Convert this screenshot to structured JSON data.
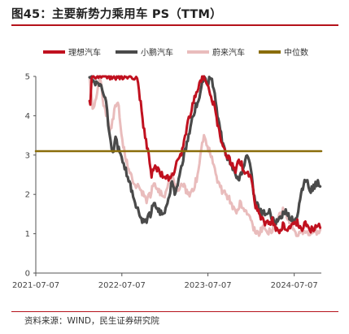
{
  "figure": {
    "title": "图45：主要新势力乘用车 PS（TTM）",
    "source": "资料来源：WIND，民生证券研究院"
  },
  "colors": {
    "理想汽车": "#c0111f",
    "小鹏汽车": "#4a4a4a",
    "蔚来汽车": "#e9bcbc",
    "中位数": "#8a6d0b",
    "rule": "#b5121b"
  },
  "chart_data": {
    "type": "line",
    "title": "",
    "xlabel": "",
    "ylabel": "",
    "ylim": [
      0,
      5
    ],
    "y_ticks": [
      0,
      1,
      2,
      3,
      4,
      5
    ],
    "x_ticks": [
      "2021-07-07",
      "2022-07-07",
      "2023-07-07",
      "2024-07-07"
    ],
    "xlim": [
      "2021-07-07",
      "2024-10-30"
    ],
    "grid": false,
    "legend": "top",
    "series": [
      {
        "name": "理想汽车",
        "points": [
          [
            "2022-02-20",
            4.4
          ],
          [
            "2022-02-23",
            4.2
          ],
          [
            "2022-02-26",
            4.7
          ],
          [
            "2022-03-01",
            5.0
          ],
          [
            "2022-09-10",
            5.0
          ],
          [
            "2022-09-25",
            4.3
          ],
          [
            "2022-10-10",
            3.6
          ],
          [
            "2022-10-25",
            3.1
          ],
          [
            "2022-11-10",
            2.5
          ],
          [
            "2022-11-25",
            2.7
          ],
          [
            "2022-12-15",
            2.55
          ],
          [
            "2023-01-05",
            2.4
          ],
          [
            "2023-01-25",
            2.45
          ],
          [
            "2023-02-15",
            2.6
          ],
          [
            "2023-03-05",
            2.9
          ],
          [
            "2023-03-20",
            3.1
          ],
          [
            "2023-04-05",
            3.6
          ],
          [
            "2023-04-25",
            4.1
          ],
          [
            "2023-05-15",
            4.5
          ],
          [
            "2023-06-05",
            4.9
          ],
          [
            "2023-06-20",
            5.0
          ],
          [
            "2023-07-05",
            4.8
          ],
          [
            "2023-07-20",
            4.5
          ],
          [
            "2023-08-05",
            4.2
          ],
          [
            "2023-08-20",
            3.7
          ],
          [
            "2023-09-05",
            3.3
          ],
          [
            "2023-09-25",
            3.0
          ],
          [
            "2023-10-15",
            2.8
          ],
          [
            "2023-11-01",
            2.6
          ],
          [
            "2023-11-15",
            2.9
          ],
          [
            "2023-12-01",
            2.7
          ],
          [
            "2023-12-15",
            2.55
          ],
          [
            "2024-01-05",
            2.45
          ],
          [
            "2024-01-15",
            2.1
          ],
          [
            "2024-01-25",
            1.7
          ],
          [
            "2024-02-05",
            1.55
          ],
          [
            "2024-02-20",
            1.4
          ],
          [
            "2024-03-05",
            1.3
          ],
          [
            "2024-03-20",
            1.25
          ],
          [
            "2024-04-05",
            1.35
          ],
          [
            "2024-04-20",
            1.15
          ],
          [
            "2024-05-05",
            1.1
          ],
          [
            "2024-05-20",
            1.2
          ],
          [
            "2024-06-05",
            1.1
          ],
          [
            "2024-06-20",
            1.15
          ],
          [
            "2024-07-05",
            1.2
          ],
          [
            "2024-07-20",
            1.3
          ],
          [
            "2024-08-05",
            1.1
          ],
          [
            "2024-08-15",
            1.2
          ],
          [
            "2024-09-01",
            1.3
          ],
          [
            "2024-09-15",
            1.1
          ],
          [
            "2024-10-01",
            1.15
          ],
          [
            "2024-10-15",
            1.25
          ],
          [
            "2024-10-25",
            1.15
          ]
        ]
      },
      {
        "name": "小鹏汽车",
        "points": [
          [
            "2022-02-20",
            5.0
          ],
          [
            "2022-04-10",
            4.7
          ],
          [
            "2022-04-20",
            4.6
          ],
          [
            "2022-05-01",
            4.4
          ],
          [
            "2022-05-10",
            3.8
          ],
          [
            "2022-05-20",
            3.3
          ],
          [
            "2022-05-30",
            3.0
          ],
          [
            "2022-06-10",
            3.4
          ],
          [
            "2022-06-20",
            3.2
          ],
          [
            "2022-07-01",
            3.0
          ],
          [
            "2022-07-15",
            2.8
          ],
          [
            "2022-08-01",
            2.4
          ],
          [
            "2022-08-20",
            2.1
          ],
          [
            "2022-09-05",
            1.7
          ],
          [
            "2022-09-20",
            1.45
          ],
          [
            "2022-10-05",
            1.3
          ],
          [
            "2022-10-20",
            1.35
          ],
          [
            "2022-11-05",
            1.5
          ],
          [
            "2022-11-20",
            1.8
          ],
          [
            "2022-12-05",
            1.65
          ],
          [
            "2022-12-20",
            1.5
          ],
          [
            "2023-01-05",
            1.55
          ],
          [
            "2023-01-20",
            1.9
          ],
          [
            "2023-02-05",
            2.3
          ],
          [
            "2023-02-20",
            2.0
          ],
          [
            "2023-03-05",
            2.4
          ],
          [
            "2023-03-20",
            2.8
          ],
          [
            "2023-04-05",
            3.2
          ],
          [
            "2023-04-20",
            3.6
          ],
          [
            "2023-05-05",
            4.0
          ],
          [
            "2023-05-20",
            4.3
          ],
          [
            "2023-06-05",
            4.6
          ],
          [
            "2023-06-20",
            5.0
          ],
          [
            "2023-07-05",
            4.8
          ],
          [
            "2023-07-20",
            5.0
          ],
          [
            "2023-08-05",
            4.5
          ],
          [
            "2023-08-20",
            3.9
          ],
          [
            "2023-09-05",
            3.4
          ],
          [
            "2023-09-20",
            3.0
          ],
          [
            "2023-10-05",
            2.9
          ],
          [
            "2023-10-20",
            2.7
          ],
          [
            "2023-11-05",
            2.5
          ],
          [
            "2023-11-20",
            2.4
          ],
          [
            "2023-12-05",
            2.7
          ],
          [
            "2023-12-20",
            3.0
          ],
          [
            "2024-01-05",
            2.6
          ],
          [
            "2024-01-20",
            1.9
          ],
          [
            "2024-02-05",
            1.7
          ],
          [
            "2024-02-20",
            1.5
          ],
          [
            "2024-03-05",
            1.55
          ],
          [
            "2024-03-20",
            1.6
          ],
          [
            "2024-04-05",
            1.4
          ],
          [
            "2024-04-20",
            1.3
          ],
          [
            "2024-05-05",
            1.35
          ],
          [
            "2024-05-20",
            1.5
          ],
          [
            "2024-06-05",
            1.55
          ],
          [
            "2024-06-20",
            1.4
          ],
          [
            "2024-07-05",
            1.3
          ],
          [
            "2024-07-20",
            1.5
          ],
          [
            "2024-08-05",
            2.0
          ],
          [
            "2024-08-20",
            2.4
          ],
          [
            "2024-09-01",
            2.3
          ],
          [
            "2024-09-15",
            2.1
          ],
          [
            "2024-10-01",
            2.2
          ],
          [
            "2024-10-15",
            2.35
          ],
          [
            "2024-10-25",
            2.2
          ]
        ]
      },
      {
        "name": "蔚来汽车",
        "points": [
          [
            "2022-02-20",
            5.0
          ],
          [
            "2022-03-05",
            4.1
          ],
          [
            "2022-03-20",
            4.5
          ],
          [
            "2022-04-05",
            5.0
          ],
          [
            "2022-04-20",
            4.3
          ],
          [
            "2022-05-05",
            4.0
          ],
          [
            "2022-05-20",
            3.6
          ],
          [
            "2022-06-05",
            4.1
          ],
          [
            "2022-06-20",
            4.4
          ],
          [
            "2022-07-05",
            3.5
          ],
          [
            "2022-07-20",
            3.0
          ],
          [
            "2022-08-05",
            2.6
          ],
          [
            "2022-08-20",
            2.4
          ],
          [
            "2022-09-05",
            2.2
          ],
          [
            "2022-09-20",
            2.15
          ],
          [
            "2022-10-05",
            2.0
          ],
          [
            "2022-10-20",
            1.85
          ],
          [
            "2022-11-05",
            2.0
          ],
          [
            "2022-11-20",
            2.3
          ],
          [
            "2022-12-05",
            2.15
          ],
          [
            "2022-12-20",
            2.0
          ],
          [
            "2023-01-05",
            1.95
          ],
          [
            "2023-01-20",
            2.3
          ],
          [
            "2023-02-05",
            2.5
          ],
          [
            "2023-02-20",
            2.2
          ],
          [
            "2023-03-05",
            2.1
          ],
          [
            "2023-03-20",
            2.3
          ],
          [
            "2023-04-05",
            2.1
          ],
          [
            "2023-04-20",
            2.0
          ],
          [
            "2023-05-05",
            2.1
          ],
          [
            "2023-05-20",
            2.4
          ],
          [
            "2023-06-05",
            3.0
          ],
          [
            "2023-06-20",
            3.5
          ],
          [
            "2023-07-05",
            3.2
          ],
          [
            "2023-07-20",
            3.0
          ],
          [
            "2023-08-05",
            2.6
          ],
          [
            "2023-08-20",
            2.3
          ],
          [
            "2023-09-05",
            2.1
          ],
          [
            "2023-09-20",
            2.0
          ],
          [
            "2023-10-05",
            1.9
          ],
          [
            "2023-10-20",
            1.7
          ],
          [
            "2023-11-05",
            1.6
          ],
          [
            "2023-11-20",
            1.75
          ],
          [
            "2023-12-05",
            1.65
          ],
          [
            "2023-12-20",
            1.5
          ],
          [
            "2024-01-05",
            1.3
          ],
          [
            "2024-01-20",
            1.1
          ],
          [
            "2024-02-05",
            1.0
          ],
          [
            "2024-02-20",
            1.1
          ],
          [
            "2024-03-05",
            1.2
          ],
          [
            "2024-03-20",
            1.05
          ],
          [
            "2024-04-05",
            1.1
          ],
          [
            "2024-04-20",
            1.25
          ],
          [
            "2024-05-05",
            1.45
          ],
          [
            "2024-05-20",
            1.6
          ],
          [
            "2024-06-05",
            1.45
          ],
          [
            "2024-06-20",
            1.3
          ],
          [
            "2024-07-05",
            1.1
          ],
          [
            "2024-07-20",
            1.0
          ],
          [
            "2024-08-05",
            1.05
          ],
          [
            "2024-08-20",
            1.1
          ],
          [
            "2024-09-01",
            1.0
          ],
          [
            "2024-09-15",
            1.05
          ],
          [
            "2024-10-01",
            1.1
          ],
          [
            "2024-10-15",
            1.05
          ],
          [
            "2024-10-25",
            1.1
          ]
        ]
      },
      {
        "name": "中位数",
        "points": [
          [
            "2021-07-07",
            3.1
          ],
          [
            "2024-10-30",
            3.1
          ]
        ]
      }
    ]
  }
}
